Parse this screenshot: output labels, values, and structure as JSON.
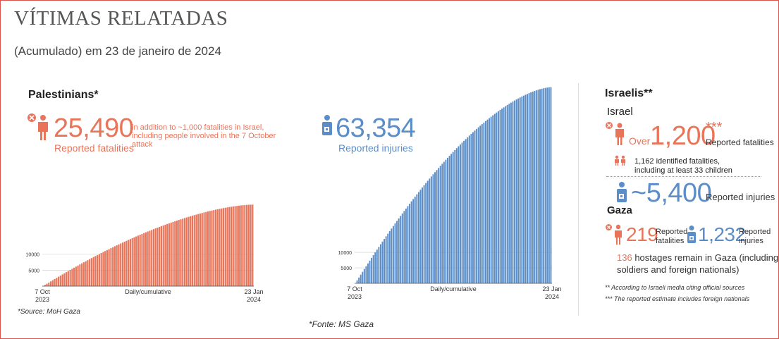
{
  "header": {
    "title": "VÍTIMAS RELATADAS",
    "subtitle": "(Acumulado) em 23 de janeiro de 2024"
  },
  "colors": {
    "fatality": "#e8745a",
    "injury": "#5b8ec8",
    "border": "#d9534f"
  },
  "palestinians": {
    "heading": "Palestinians*",
    "fatalities_value": "25,490",
    "fatalities_note": "in addition to ~1,000 fatalities in Israel, including people involved in the 7 October attack",
    "fatalities_label": "Reported fatalities",
    "injuries_value": "63,354",
    "injuries_label": "Reported injuries",
    "source": "*Source: MoH Gaza"
  },
  "israelis": {
    "heading": "Israelis**",
    "israel_label": "Israel",
    "over_word": "Over",
    "fatalities_value": "1,200",
    "fatalities_stars": "***",
    "fatalities_label": "Reported fatalities",
    "identified_line1": "1,162 identified fatalities,",
    "identified_line2": "including at least 33 children",
    "injuries_value": "~5,400",
    "injuries_label": "Reported injuries",
    "gaza_label": "Gaza",
    "gaza_fatalities_value": "219",
    "gaza_fatalities_label1": "Reported",
    "gaza_fatalities_label2": "fatalities",
    "gaza_injuries_value": "1,232",
    "gaza_injuries_label1": "Reported",
    "gaza_injuries_label2": "injuries",
    "hostages_number": "136",
    "hostages_text": " hostages remain in Gaza (including",
    "hostages_text2": "soldiers and foreign nationals)",
    "note1": "** According to Israeli media citing official sources",
    "note2": "*** The reported estimate includes foreign nationals"
  },
  "footer": {
    "fonte": "*Fonte: MS Gaza"
  },
  "chart_data": [
    {
      "type": "bar",
      "name": "fatalities",
      "xlabel": "Daily/cumulative",
      "x_start": "7 Oct 2023",
      "x_end": "23 Jan 2024",
      "x_start_line1": "7 Oct",
      "x_start_line2": "2023",
      "x_end_line1": "23 Jan",
      "x_end_line2": "2024",
      "ylim": [
        0,
        26000
      ],
      "yticks": [
        5000,
        10000
      ],
      "ytick_labels": [
        "5000",
        "10000"
      ],
      "start": 0,
      "end": 25490,
      "n_bars": 109,
      "color": "#e8745a"
    },
    {
      "type": "bar",
      "name": "injuries",
      "xlabel": "Daily/cumulative",
      "x_start": "7 Oct 2023",
      "x_end": "23 Jan 2024",
      "x_start_line1": "7 Oct",
      "x_start_line2": "2023",
      "x_end_line1": "23 Jan",
      "x_end_line2": "2024",
      "ylim": [
        0,
        64000
      ],
      "yticks": [
        5000,
        10000
      ],
      "ytick_labels": [
        "5000",
        "10000"
      ],
      "start": 0,
      "end": 63354,
      "n_bars": 109,
      "color": "#5b8ec8"
    }
  ]
}
